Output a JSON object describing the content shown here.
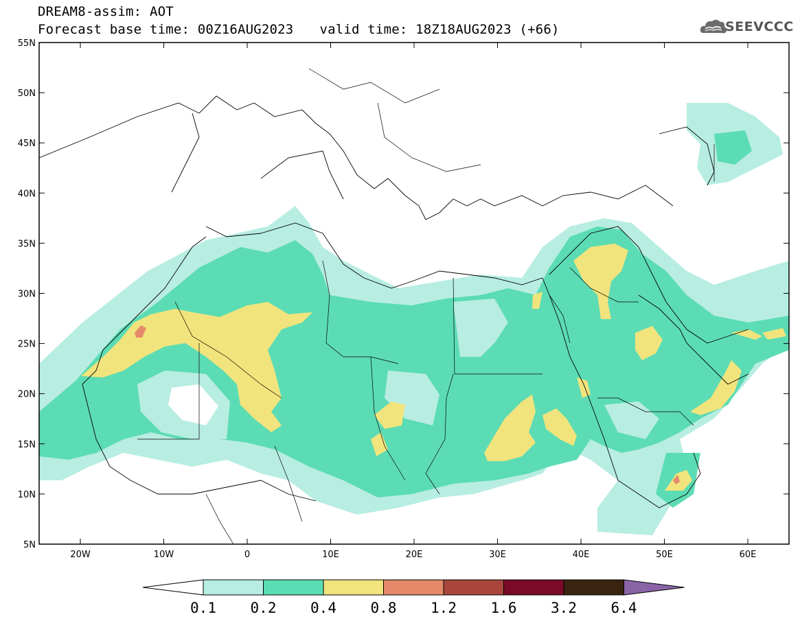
{
  "header": {
    "line1": "DREAM8-assim: AOT",
    "base_time": "Forecast base time: 00Z16AUG2023",
    "valid_time": "valid time: 18Z18AUG2023 (+66)"
  },
  "logo": {
    "text": "SEEVCCC",
    "icon": "cloud-logo-icon"
  },
  "map": {
    "lon_ticks": [
      "20W",
      "10W",
      "0",
      "10E",
      "20E",
      "30E",
      "40E",
      "50E",
      "60E"
    ],
    "lat_ticks": [
      "55N",
      "50N",
      "45N",
      "40N",
      "35N",
      "30N",
      "25N",
      "20N",
      "15N",
      "10N",
      "5N"
    ]
  },
  "colorbar": {
    "labels": [
      "0.1",
      "0.2",
      "0.4",
      "0.8",
      "1.2",
      "1.6",
      "3.2",
      "6.4"
    ],
    "colors": [
      "#ffffff",
      "#b8ede2",
      "#5cdcb4",
      "#f2e47c",
      "#e48a6a",
      "#a8463c",
      "#7a0a28",
      "#3a2410",
      "#8a64a6"
    ]
  },
  "legend_colors": {
    "aot_0_1_0_2": "#b8ede2",
    "aot_0_2_0_4": "#5cdcb4",
    "aot_0_4_0_8": "#f2e47c",
    "aot_0_8_1_2": "#e48a6a"
  }
}
